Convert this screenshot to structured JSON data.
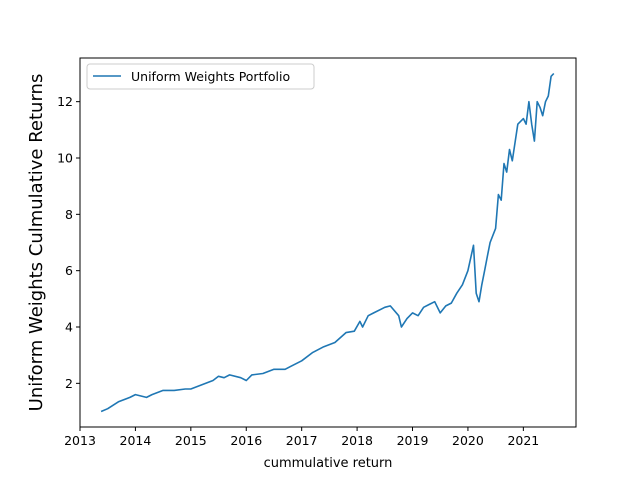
{
  "chart_data": {
    "type": "line",
    "title": "",
    "xlabel": "cummulative return",
    "ylabel": "Uniform Weights Culmulative Returns",
    "xlim": [
      2013.0,
      2021.95
    ],
    "ylim": [
      0.45,
      13.55
    ],
    "x_ticks": [
      2013,
      2014,
      2015,
      2016,
      2017,
      2018,
      2019,
      2020,
      2021
    ],
    "x_tick_labels": [
      "2013",
      "2014",
      "2015",
      "2016",
      "2017",
      "2018",
      "2019",
      "2020",
      "2021"
    ],
    "y_ticks": [
      2,
      4,
      6,
      8,
      10,
      12
    ],
    "y_tick_labels": [
      "2",
      "4",
      "6",
      "8",
      "10",
      "12"
    ],
    "grid": false,
    "legend_position": "upper-left",
    "series": [
      {
        "name": "Uniform Weights Portfolio",
        "color": "#1f77b4",
        "x": [
          2013.38,
          2013.5,
          2013.7,
          2013.9,
          2014.0,
          2014.2,
          2014.3,
          2014.5,
          2014.7,
          2014.9,
          2015.0,
          2015.2,
          2015.4,
          2015.5,
          2015.6,
          2015.7,
          2015.9,
          2016.0,
          2016.1,
          2016.3,
          2016.5,
          2016.7,
          2016.8,
          2017.0,
          2017.2,
          2017.4,
          2017.6,
          2017.8,
          2017.95,
          2018.05,
          2018.1,
          2018.2,
          2018.3,
          2018.5,
          2018.6,
          2018.75,
          2018.8,
          2018.9,
          2019.0,
          2019.1,
          2019.2,
          2019.3,
          2019.4,
          2019.5,
          2019.6,
          2019.7,
          2019.8,
          2019.9,
          2020.0,
          2020.1,
          2020.15,
          2020.2,
          2020.25,
          2020.3,
          2020.35,
          2020.4,
          2020.5,
          2020.55,
          2020.6,
          2020.65,
          2020.7,
          2020.75,
          2020.8,
          2020.9,
          2021.0,
          2021.05,
          2021.1,
          2021.15,
          2021.2,
          2021.25,
          2021.3,
          2021.35,
          2021.4,
          2021.45,
          2021.5,
          2021.55
        ],
        "y": [
          1.0,
          1.1,
          1.35,
          1.5,
          1.6,
          1.5,
          1.6,
          1.75,
          1.75,
          1.8,
          1.8,
          1.95,
          2.1,
          2.25,
          2.2,
          2.3,
          2.2,
          2.1,
          2.3,
          2.35,
          2.5,
          2.5,
          2.6,
          2.8,
          3.1,
          3.3,
          3.45,
          3.8,
          3.85,
          4.2,
          4.0,
          4.4,
          4.5,
          4.7,
          4.75,
          4.4,
          4.0,
          4.3,
          4.5,
          4.4,
          4.7,
          4.8,
          4.9,
          4.5,
          4.75,
          4.85,
          5.2,
          5.5,
          6.0,
          6.9,
          5.2,
          4.9,
          5.5,
          6.0,
          6.5,
          7.0,
          7.5,
          8.7,
          8.5,
          9.8,
          9.5,
          10.3,
          9.9,
          11.2,
          11.4,
          11.2,
          12.0,
          11.2,
          10.6,
          12.0,
          11.8,
          11.5,
          12.0,
          12.2,
          12.9,
          13.0
        ]
      }
    ]
  }
}
